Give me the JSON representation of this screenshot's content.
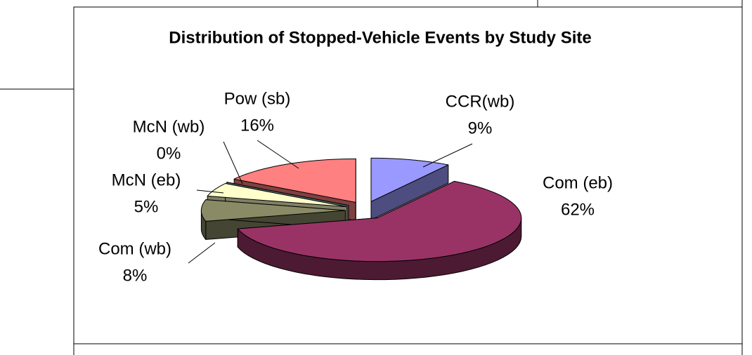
{
  "chart_data": {
    "type": "pie",
    "title": "Distribution of Stopped-Vehicle Events by Study Site",
    "categories": [
      "CCR(wb)",
      "Com (eb)",
      "Com (wb)",
      "McN (eb)",
      "McN (wb)",
      "Pow (sb)"
    ],
    "values": [
      9,
      62,
      8,
      5,
      0,
      16
    ],
    "value_labels": [
      "9%",
      "62%",
      "8%",
      "5%",
      "0%",
      "16%"
    ],
    "colors": [
      "#9999ff",
      "#993366",
      "#8a8a66",
      "#ffffcc",
      "#ccffff",
      "#ff8080"
    ]
  }
}
